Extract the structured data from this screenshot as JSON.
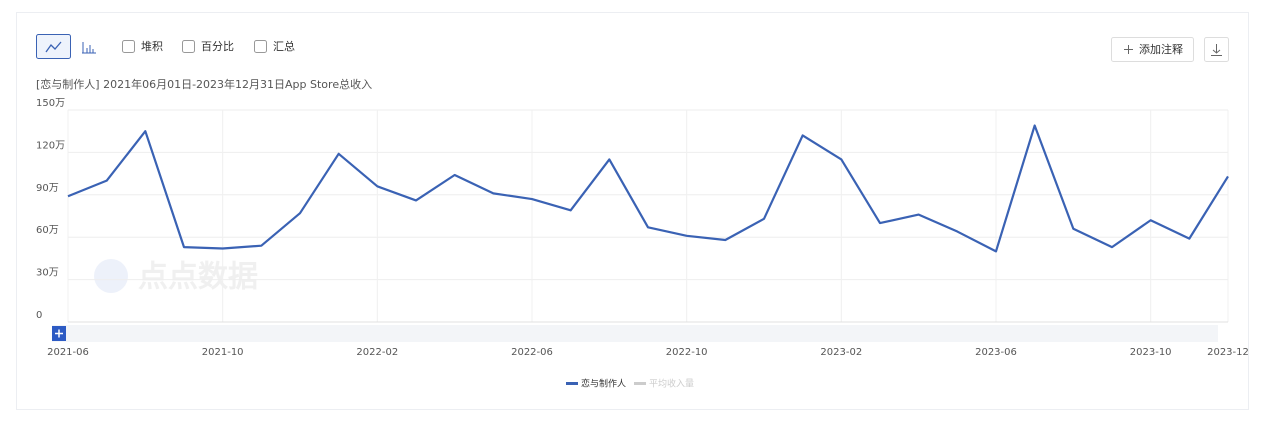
{
  "toolbar": {
    "options": [
      "堆积",
      "百分比",
      "汇总"
    ],
    "annotate_button": "添加注释"
  },
  "watermark": "点点数据",
  "chart_data": {
    "type": "line",
    "subtitle": "[恋与制作人] 2021年06月01日-2023年12月31日App Store总收入",
    "categories": [
      "2021-06",
      null,
      null,
      null,
      "2021-10",
      null,
      null,
      null,
      "2022-02",
      null,
      null,
      null,
      "2022-06",
      null,
      null,
      null,
      "2022-10",
      null,
      null,
      null,
      "2023-02",
      null,
      null,
      null,
      "2023-06",
      null,
      null,
      null,
      "2023-10",
      null,
      "2023-12"
    ],
    "series": [
      {
        "name": "恋与制作人",
        "color": "#3a62b4",
        "values": [
          89,
          100,
          135,
          53,
          52,
          54,
          77,
          119,
          96,
          86,
          104,
          91,
          87,
          79,
          115,
          67,
          61,
          58,
          73,
          132,
          115,
          70,
          76,
          64,
          50,
          139,
          66,
          53,
          72,
          59,
          103
        ]
      }
    ],
    "inactive_legend": {
      "name": "平均收入量",
      "color": "#cccccc"
    },
    "ylim": [
      0,
      150
    ],
    "yticks": [
      0,
      {
        "value": 30,
        "label": "30万"
      },
      {
        "value": 60,
        "label": "60万"
      },
      {
        "value": 90,
        "label": "90万"
      },
      {
        "value": 120,
        "label": "120万"
      },
      {
        "value": 150,
        "label": "150万"
      }
    ],
    "grid": true
  }
}
